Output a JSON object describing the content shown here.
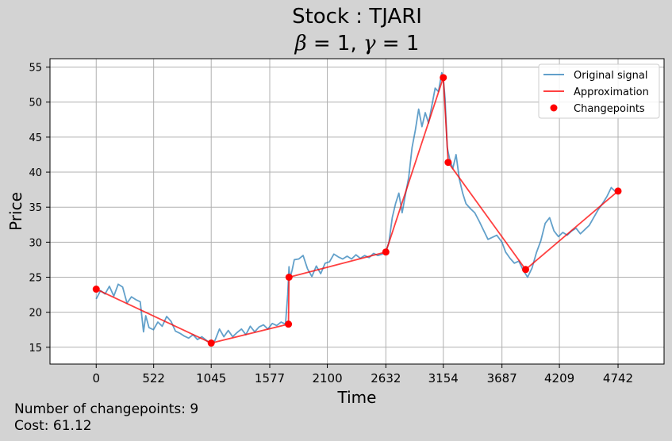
{
  "title_prefix": "Stock : ",
  "ticker": "TJARI",
  "beta_label": "β",
  "gamma_label": "γ",
  "beta_value": "1",
  "gamma_value": "1",
  "changepoints_label": "Number of changepoints: 9",
  "cost_label": "Cost: 61.12",
  "chart_data": {
    "type": "line",
    "xlabel": "Time",
    "ylabel": "Price",
    "xlim": [
      -420,
      5160
    ],
    "ylim": [
      12.6,
      56.2
    ],
    "xticks": [
      0,
      522,
      1045,
      1577,
      2100,
      2632,
      3154,
      3687,
      4209,
      4742
    ],
    "yticks": [
      15,
      20,
      25,
      30,
      35,
      40,
      45,
      50,
      55
    ],
    "grid": true,
    "legend": {
      "position": "top-right",
      "entries": [
        "Original signal",
        "Approximation",
        "Changepoints"
      ]
    },
    "colors": {
      "signal": "#1f77b4",
      "approximation": "#ff0000",
      "changepoint": "#ff0000",
      "grid": "#b0b0b0"
    },
    "series": [
      {
        "name": "Original signal",
        "x": [
          0,
          40,
          80,
          120,
          160,
          200,
          240,
          280,
          320,
          360,
          400,
          430,
          450,
          480,
          520,
          560,
          600,
          640,
          680,
          720,
          760,
          800,
          840,
          880,
          920,
          960,
          1000,
          1045,
          1080,
          1120,
          1160,
          1200,
          1240,
          1280,
          1320,
          1360,
          1400,
          1440,
          1480,
          1520,
          1560,
          1600,
          1640,
          1680,
          1720,
          1740,
          1752,
          1760,
          1780,
          1800,
          1840,
          1880,
          1920,
          1960,
          2000,
          2040,
          2080,
          2120,
          2160,
          2200,
          2240,
          2280,
          2320,
          2360,
          2400,
          2440,
          2480,
          2520,
          2560,
          2600,
          2632,
          2660,
          2690,
          2720,
          2750,
          2780,
          2810,
          2840,
          2870,
          2900,
          2930,
          2960,
          2990,
          3020,
          3050,
          3080,
          3110,
          3140,
          3154,
          3170,
          3190,
          3210,
          3240,
          3270,
          3300,
          3330,
          3360,
          3400,
          3440,
          3480,
          3520,
          3560,
          3600,
          3640,
          3687,
          3720,
          3760,
          3800,
          3840,
          3880,
          3920,
          3960,
          4000,
          4040,
          4080,
          4120,
          4160,
          4200,
          4240,
          4280,
          4320,
          4360,
          4400,
          4440,
          4480,
          4520,
          4560,
          4600,
          4640,
          4680,
          4720,
          4742
        ],
        "values": [
          21.9,
          23.1,
          22.6,
          23.7,
          22.3,
          24.0,
          23.6,
          21.3,
          22.2,
          21.8,
          21.5,
          17.2,
          19.5,
          17.8,
          17.5,
          18.6,
          18.0,
          19.4,
          18.7,
          17.3,
          17.0,
          16.6,
          16.3,
          16.8,
          16.1,
          16.5,
          16.0,
          15.4,
          16.0,
          17.6,
          16.5,
          17.4,
          16.5,
          17.1,
          17.6,
          16.8,
          18.0,
          17.2,
          17.9,
          18.2,
          17.6,
          18.4,
          18.1,
          18.6,
          18.3,
          22.5,
          26.5,
          24.8,
          26.0,
          27.5,
          27.6,
          28.1,
          26.2,
          25.1,
          26.6,
          25.5,
          27.0,
          27.2,
          28.3,
          27.9,
          27.6,
          28.0,
          27.6,
          28.2,
          27.7,
          28.1,
          27.8,
          28.4,
          28.1,
          28.3,
          28.6,
          30.0,
          33.5,
          35.5,
          37.0,
          34.2,
          36.8,
          39.3,
          43.5,
          46.0,
          49.0,
          46.5,
          48.5,
          47.0,
          49.5,
          52.0,
          51.5,
          54.2,
          53.4,
          50.5,
          43.5,
          42.0,
          40.5,
          42.5,
          39.0,
          37.0,
          35.5,
          34.8,
          34.2,
          33.0,
          31.7,
          30.4,
          30.7,
          31.0,
          30.0,
          28.6,
          27.7,
          27.0,
          27.3,
          26.0,
          25.0,
          26.3,
          28.5,
          30.2,
          32.7,
          33.5,
          31.6,
          30.8,
          31.4,
          31.0,
          31.6,
          32.0,
          31.2,
          31.8,
          32.4,
          33.5,
          34.6,
          35.5,
          36.5,
          37.8,
          37.2,
          37.4
        ]
      },
      {
        "name": "Approximation",
        "x": [
          0,
          1045,
          1747,
          1752,
          2632,
          3154,
          3198,
          3902,
          4742
        ],
        "values": [
          23.3,
          15.6,
          18.3,
          25.0,
          28.6,
          53.5,
          41.4,
          26.1,
          37.3
        ]
      },
      {
        "name": "Changepoints",
        "x": [
          0,
          1045,
          1747,
          1752,
          2632,
          3154,
          3198,
          3902,
          4742
        ],
        "values": [
          23.3,
          15.6,
          18.3,
          25.0,
          28.6,
          53.5,
          41.4,
          26.1,
          37.3
        ]
      }
    ]
  }
}
